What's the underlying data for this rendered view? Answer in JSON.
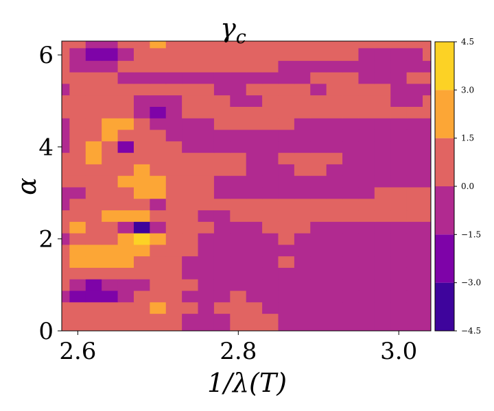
{
  "chart_data": {
    "type": "heatmap",
    "subtype": "filled-contour",
    "title": "γc",
    "title_main": "γ",
    "title_sub": "c",
    "xlabel": "1/λ(T)",
    "ylabel": "α",
    "xlim": [
      2.58,
      3.04
    ],
    "ylim": [
      0,
      6.3
    ],
    "xticks": [
      2.6,
      2.8,
      3.0
    ],
    "xtick_labels": [
      "2.6",
      "2.8",
      "3.0"
    ],
    "yticks": [
      0,
      2,
      4,
      6
    ],
    "ytick_labels": [
      "0",
      "2",
      "4",
      "6"
    ],
    "colormap": "plasma",
    "levels": [
      -4.5,
      -3.0,
      -1.5,
      0.0,
      1.5,
      3.0,
      4.5
    ],
    "colorbar_labels": [
      "−4.5",
      "−3.0",
      "−1.5",
      "0.0",
      "1.5",
      "3.0",
      "4.5"
    ],
    "level_colors": [
      "#3e049c",
      "#7e03a8",
      "#b12a90",
      "#e16462",
      "#fca636",
      "#fcd225"
    ],
    "grid": false,
    "x": [
      2.58,
      2.6,
      2.62,
      2.64,
      2.66,
      2.68,
      2.7,
      2.72,
      2.74,
      2.76,
      2.78,
      2.8,
      2.82,
      2.84,
      2.86,
      2.88,
      2.9,
      2.92,
      2.94,
      2.96,
      2.98,
      3.0,
      3.02,
      3.04
    ],
    "y": [
      0,
      0.25,
      0.5,
      0.75,
      1.0,
      1.25,
      1.5,
      1.75,
      2.0,
      2.25,
      2.5,
      2.75,
      3.0,
      3.25,
      3.5,
      3.75,
      4.0,
      4.25,
      4.5,
      4.75,
      5.0,
      5.25,
      5.5,
      5.75,
      6.0,
      6.3
    ],
    "z": [
      [
        0.4,
        0.6,
        0.9,
        0.5,
        0.2,
        0.6,
        0.4,
        0.1,
        -0.3,
        -0.5,
        -0.2,
        0.2,
        0.5,
        0.3,
        -0.2,
        -0.5,
        -0.6,
        -0.4,
        -0.3,
        -0.2,
        -0.4,
        -0.5,
        -0.3,
        -0.2
      ],
      [
        0.5,
        1.2,
        1.4,
        1.0,
        0.3,
        0.2,
        0.6,
        0.3,
        -0.4,
        -0.7,
        -0.8,
        0.3,
        0.8,
        0.6,
        -0.3,
        -0.7,
        -0.8,
        -0.6,
        -0.5,
        -0.4,
        -0.5,
        -0.7,
        -0.5,
        -0.3
      ],
      [
        0.3,
        0.1,
        0.8,
        1.3,
        0.6,
        0.9,
        1.6,
        1.2,
        0.2,
        -0.3,
        0.3,
        0.6,
        0.2,
        -0.2,
        -0.4,
        -0.6,
        -0.7,
        -0.8,
        -0.6,
        -0.5,
        -0.4,
        -0.3,
        -0.2,
        -0.3
      ],
      [
        -0.3,
        -1.6,
        -2.9,
        -1.8,
        -0.2,
        0.4,
        0.7,
        0.2,
        -0.4,
        -0.6,
        -0.3,
        0.1,
        -0.2,
        -0.6,
        -0.8,
        -0.9,
        -1.0,
        -0.8,
        -0.7,
        -0.6,
        -0.5,
        -0.5,
        -0.4,
        -0.3
      ],
      [
        0.2,
        -0.8,
        -1.9,
        -1.5,
        -0.3,
        -0.2,
        0.4,
        0.6,
        0.1,
        -0.4,
        -0.5,
        -0.3,
        -0.4,
        -0.7,
        -0.9,
        -0.8,
        -0.7,
        -0.6,
        -0.5,
        -0.4,
        -0.5,
        -0.6,
        -0.4,
        -0.3
      ],
      [
        0.8,
        0.4,
        0.3,
        0.6,
        0.9,
        0.8,
        0.5,
        0.3,
        -0.2,
        -0.6,
        -0.7,
        -0.6,
        -0.8,
        -0.5,
        -0.2,
        -0.3,
        -0.5,
        -0.4,
        -0.6,
        -0.7,
        -0.6,
        -0.5,
        -0.4,
        -0.3
      ],
      [
        1.2,
        1.6,
        2.1,
        2.3,
        1.9,
        1.4,
        0.8,
        0.2,
        -0.3,
        -0.5,
        -0.6,
        -0.4,
        -0.6,
        -0.3,
        0.2,
        -0.2,
        -0.4,
        -0.5,
        -0.6,
        -0.5,
        -0.4,
        -0.3,
        -0.2,
        -0.3
      ],
      [
        0.6,
        1.8,
        2.4,
        1.9,
        1.6,
        2.2,
        1.4,
        0.6,
        0.1,
        -0.3,
        -0.6,
        -0.8,
        -0.7,
        -0.5,
        -0.4,
        -0.3,
        -0.2,
        -0.3,
        -0.4,
        -0.3,
        -0.2,
        -0.3,
        -0.4,
        -0.3
      ],
      [
        -1.4,
        0.4,
        1.2,
        0.8,
        1.6,
        3.2,
        1.8,
        0.8,
        0.3,
        -0.2,
        -0.7,
        -0.9,
        -0.5,
        -0.1,
        0.2,
        -0.3,
        -0.5,
        -0.4,
        -0.3,
        -0.2,
        -0.3,
        -0.4,
        -0.3,
        -0.2
      ],
      [
        0.2,
        1.6,
        1.1,
        0.4,
        -0.9,
        -3.3,
        -1.2,
        0.3,
        0.6,
        0.2,
        -0.4,
        -0.6,
        -0.2,
        0.3,
        0.5,
        0.2,
        -0.2,
        -0.3,
        -0.2,
        -0.1,
        -0.2,
        -0.3,
        -0.2,
        -0.1
      ],
      [
        0.4,
        0.7,
        1.2,
        1.7,
        2.3,
        1.6,
        0.9,
        0.6,
        0.4,
        -0.2,
        -0.4,
        0.3,
        0.8,
        0.6,
        0.3,
        0.2,
        0.3,
        0.4,
        0.3,
        0.2,
        0.3,
        0.4,
        0.3,
        0.2
      ],
      [
        -0.2,
        0.3,
        0.6,
        1.1,
        0.8,
        0.3,
        -0.6,
        0.1,
        0.4,
        0.5,
        0.6,
        0.5,
        0.7,
        0.6,
        0.5,
        0.4,
        0.6,
        0.5,
        0.4,
        0.5,
        0.6,
        0.4,
        0.5,
        0.6
      ],
      [
        -0.4,
        -0.6,
        0.2,
        0.6,
        1.2,
        2.1,
        1.6,
        0.8,
        0.4,
        0.2,
        -0.4,
        -0.7,
        -0.6,
        -0.3,
        -0.6,
        -0.8,
        -0.6,
        -0.5,
        -0.4,
        -0.3,
        0.3,
        0.4,
        0.3,
        0.2
      ],
      [
        0.3,
        0.7,
        0.9,
        1.2,
        1.7,
        2.6,
        1.8,
        0.7,
        0.3,
        0.5,
        -0.3,
        -0.5,
        -0.4,
        -0.2,
        -0.4,
        -0.6,
        -0.7,
        -0.6,
        -0.5,
        -0.4,
        -0.3,
        -0.3,
        -0.2,
        -0.3
      ],
      [
        0.8,
        1.2,
        0.7,
        0.4,
        1.1,
        2.4,
        1.3,
        0.8,
        1.0,
        0.9,
        0.6,
        0.4,
        -0.3,
        -0.5,
        -0.2,
        0.2,
        0.4,
        -0.3,
        -0.4,
        -0.5,
        -0.6,
        -0.4,
        -0.3,
        -0.4
      ],
      [
        0.4,
        0.9,
        1.5,
        0.8,
        0.5,
        0.6,
        0.7,
        0.4,
        0.6,
        0.8,
        0.7,
        0.3,
        -0.2,
        -0.4,
        0.4,
        0.8,
        0.6,
        0.2,
        -0.3,
        -0.5,
        -0.6,
        -0.5,
        -0.4,
        -0.5
      ],
      [
        -0.3,
        0.8,
        1.6,
        0.6,
        -1.8,
        0.7,
        0.4,
        0.3,
        -0.2,
        -0.5,
        -0.6,
        -0.4,
        -0.5,
        -0.3,
        -0.2,
        -0.4,
        -0.5,
        -0.6,
        -0.4,
        -0.3,
        -0.4,
        -0.6,
        -0.4,
        -0.3
      ],
      [
        -0.6,
        0.4,
        1.1,
        2.0,
        1.3,
        0.5,
        0.2,
        -0.4,
        -0.6,
        -0.5,
        -0.4,
        -0.3,
        -0.5,
        -0.6,
        -0.4,
        -0.3,
        -0.5,
        -0.6,
        -0.7,
        -0.5,
        -0.4,
        -0.3,
        -0.2,
        -0.3
      ],
      [
        -0.4,
        0.3,
        1.2,
        2.3,
        1.8,
        0.9,
        -0.3,
        -0.6,
        -0.4,
        -0.2,
        0.3,
        0.5,
        0.6,
        0.4,
        0.2,
        -0.2,
        -0.4,
        -0.3,
        -0.2,
        -0.4,
        -0.3,
        -0.2,
        -0.3,
        -0.4
      ],
      [
        0.2,
        0.6,
        0.4,
        0.3,
        0.6,
        -1.3,
        -2.6,
        -1.1,
        0.3,
        0.4,
        0.6,
        0.7,
        0.5,
        0.6,
        0.4,
        0.3,
        0.2,
        0.3,
        0.2,
        0.1,
        0.2,
        0.3,
        0.2,
        0.1
      ],
      [
        0.5,
        0.7,
        0.9,
        0.6,
        0.2,
        -0.3,
        -0.6,
        -0.3,
        0.2,
        0.4,
        0.5,
        -0.4,
        -0.3,
        0.4,
        0.5,
        0.6,
        0.4,
        0.5,
        0.6,
        0.4,
        0.3,
        -0.2,
        -0.3,
        0.2
      ],
      [
        -0.2,
        0.3,
        0.5,
        0.8,
        0.6,
        0.4,
        0.7,
        0.5,
        0.3,
        0.1,
        -0.2,
        -0.4,
        0.3,
        0.5,
        0.6,
        0.4,
        -0.2,
        0.3,
        0.5,
        0.4,
        0.2,
        -0.3,
        -0.4,
        -0.2
      ],
      [
        0.4,
        0.8,
        0.6,
        0.3,
        -0.3,
        -0.6,
        -0.4,
        -0.3,
        -0.5,
        -0.6,
        -0.4,
        -0.3,
        -0.2,
        -0.3,
        -0.4,
        -0.2,
        0.2,
        0.3,
        0.2,
        -0.3,
        -0.4,
        -0.2,
        0.2,
        0.3
      ],
      [
        0.6,
        -0.4,
        -0.9,
        -0.5,
        0.3,
        0.6,
        0.4,
        0.2,
        0.3,
        0.4,
        0.5,
        0.6,
        0.4,
        0.2,
        -0.3,
        -0.5,
        -0.6,
        -0.5,
        -0.4,
        -0.3,
        -0.4,
        -0.5,
        -0.3,
        -0.2
      ],
      [
        0.3,
        -1.2,
        -2.4,
        -1.6,
        -0.4,
        0.5,
        0.7,
        0.6,
        0.4,
        0.5,
        0.6,
        0.7,
        0.5,
        0.4,
        0.3,
        0.2,
        0.3,
        0.4,
        0.2,
        -0.3,
        -0.4,
        -0.3,
        -0.2,
        0.3
      ],
      [
        0.5,
        0.2,
        -0.6,
        -0.3,
        0.4,
        0.9,
        1.6,
        1.2,
        0.6,
        0.4,
        0.5,
        0.6,
        0.4,
        0.3,
        0.2,
        0.3,
        0.4,
        0.5,
        0.6,
        0.4,
        0.3,
        0.2,
        0.3,
        0.4
      ]
    ]
  }
}
